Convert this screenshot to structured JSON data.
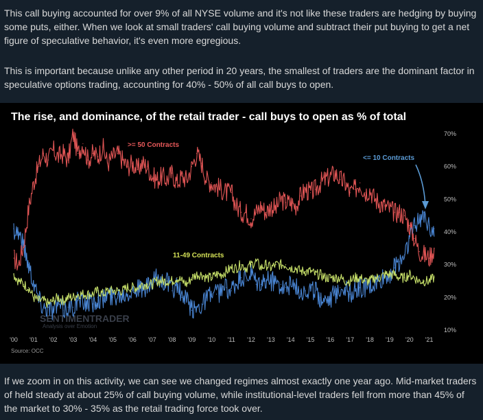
{
  "paragraphs": {
    "intro": "This call buying accounted for over 9% of all NYSE volume and it's not like these traders are hedging by buying some puts, either. When we look at small traders' call buying volume and subtract their put buying to get a net figure of speculative behavior, it's even more egregious.",
    "important": "This is important because unlike any other period in 20 years, the smallest of traders are the dominant factor in speculative options trading, accounting for 40% - 50% of all call buys to open.",
    "zoom": "If we zoom in on this activity, we can see we changed regimes almost exactly one year ago. Mid-market traders of held steady at about 25% of call buying volume, while institutional-level traders fell from more than 45% of the market to 30% - 35% as the retail trading force took over."
  },
  "chart_data": {
    "type": "line",
    "title": "The rise, and dominance, of the retail trader - call buys to open as % of total",
    "x_tick_labels": [
      "'00",
      "'01",
      "'02",
      "'03",
      "'04",
      "'05",
      "'06",
      "'07",
      "'08",
      "'09",
      "'10",
      "'11",
      "'12",
      "'13",
      "'14",
      "'15",
      "'16",
      "'17",
      "'18",
      "'19",
      "'20",
      "'21"
    ],
    "y_tick_labels": [
      "70%",
      "60%",
      "50%",
      "40%",
      "30%",
      "20%",
      "10%"
    ],
    "xlim": [
      2000.0,
      2021.5
    ],
    "ylim": [
      10,
      70
    ],
    "y_axis_side": "right",
    "source": "Source: OCC",
    "watermark": {
      "brand": "SENTIMENTRADER",
      "tagline": "Analysis over Emotion"
    },
    "annotations": [
      {
        "text": ">= 50 Contracts",
        "color": "#e8595a"
      },
      {
        "text": "<= 10 Contracts",
        "color": "#5b9bd5"
      },
      {
        "text": "11-49 Contracts",
        "color": "#d4e157"
      }
    ],
    "series": [
      {
        "name": ">= 50 Contracts",
        "color": "#e05555",
        "x": [
          2000.0,
          2000.25,
          2000.5,
          2000.75,
          2001.0,
          2001.25,
          2001.5,
          2001.75,
          2002.0,
          2002.25,
          2002.5,
          2002.75,
          2003.0,
          2003.25,
          2003.5,
          2003.75,
          2004.0,
          2004.25,
          2004.5,
          2004.75,
          2005.0,
          2005.25,
          2005.5,
          2005.75,
          2006.0,
          2006.25,
          2006.5,
          2006.75,
          2007.0,
          2007.25,
          2007.5,
          2007.75,
          2008.0,
          2008.25,
          2008.5,
          2008.75,
          2009.0,
          2009.25,
          2009.5,
          2009.75,
          2010.0,
          2010.25,
          2010.5,
          2010.75,
          2011.0,
          2011.25,
          2011.5,
          2011.75,
          2012.0,
          2012.25,
          2012.5,
          2012.75,
          2013.0,
          2013.25,
          2013.5,
          2013.75,
          2014.0,
          2014.25,
          2014.5,
          2014.75,
          2015.0,
          2015.25,
          2015.5,
          2015.75,
          2016.0,
          2016.25,
          2016.5,
          2016.75,
          2017.0,
          2017.25,
          2017.5,
          2017.75,
          2018.0,
          2018.25,
          2018.5,
          2018.75,
          2019.0,
          2019.25,
          2019.5,
          2019.75,
          2020.0,
          2020.25,
          2020.5,
          2020.75,
          2021.0,
          2021.25
        ],
        "values": [
          32,
          30,
          36,
          47,
          55,
          60,
          64,
          62,
          65,
          63,
          64,
          62,
          70,
          64,
          67,
          62,
          64,
          63,
          66,
          61,
          63,
          64,
          62,
          60,
          61,
          59,
          61,
          60,
          57,
          56,
          57,
          56,
          58,
          55,
          57,
          56,
          60,
          64,
          61,
          56,
          55,
          54,
          53,
          52,
          52,
          48,
          46,
          46,
          44,
          46,
          48,
          46,
          48,
          47,
          50,
          49,
          49,
          48,
          51,
          53,
          52,
          53,
          55,
          56,
          57,
          58,
          56,
          55,
          52,
          53,
          55,
          52,
          53,
          50,
          49,
          48,
          47,
          46,
          46,
          45,
          42,
          38,
          34,
          33,
          32,
          35
        ]
      },
      {
        "name": "<= 10 Contracts",
        "color": "#4a86d4",
        "x": [
          2000.0,
          2000.25,
          2000.5,
          2000.75,
          2001.0,
          2001.25,
          2001.5,
          2001.75,
          2002.0,
          2002.25,
          2002.5,
          2002.75,
          2003.0,
          2003.25,
          2003.5,
          2003.75,
          2004.0,
          2004.25,
          2004.5,
          2004.75,
          2005.0,
          2005.25,
          2005.5,
          2005.75,
          2006.0,
          2006.25,
          2006.5,
          2006.75,
          2007.0,
          2007.25,
          2007.5,
          2007.75,
          2008.0,
          2008.25,
          2008.5,
          2008.75,
          2009.0,
          2009.25,
          2009.5,
          2009.75,
          2010.0,
          2010.25,
          2010.5,
          2010.75,
          2011.0,
          2011.25,
          2011.5,
          2011.75,
          2012.0,
          2012.25,
          2012.5,
          2012.75,
          2013.0,
          2013.25,
          2013.5,
          2013.75,
          2014.0,
          2014.25,
          2014.5,
          2014.75,
          2015.0,
          2015.25,
          2015.5,
          2015.75,
          2016.0,
          2016.25,
          2016.5,
          2016.75,
          2017.0,
          2017.25,
          2017.5,
          2017.75,
          2018.0,
          2018.25,
          2018.5,
          2018.75,
          2019.0,
          2019.25,
          2019.5,
          2019.75,
          2020.0,
          2020.25,
          2020.5,
          2020.75,
          2021.0,
          2021.25
        ],
        "values": [
          41,
          40,
          36,
          30,
          25,
          20,
          17,
          17,
          16,
          18,
          16,
          17,
          17,
          19,
          18,
          19,
          18,
          20,
          19,
          21,
          20,
          21,
          21,
          22,
          22,
          23,
          22,
          23,
          24,
          26,
          25,
          25,
          22,
          24,
          20,
          19,
          16,
          17,
          18,
          20,
          21,
          21,
          22,
          23,
          22,
          24,
          26,
          25,
          27,
          24,
          24,
          25,
          25,
          25,
          24,
          23,
          24,
          23,
          22,
          22,
          22,
          22,
          20,
          20,
          20,
          21,
          23,
          23,
          21,
          22,
          23,
          23,
          23,
          24,
          25,
          26,
          27,
          29,
          31,
          33,
          38,
          42,
          43,
          46,
          42,
          41
        ]
      },
      {
        "name": "11-49 Contracts",
        "color": "#c7e06a",
        "x": [
          2000.0,
          2000.25,
          2000.5,
          2000.75,
          2001.0,
          2001.25,
          2001.5,
          2001.75,
          2002.0,
          2002.25,
          2002.5,
          2002.75,
          2003.0,
          2003.25,
          2003.5,
          2003.75,
          2004.0,
          2004.25,
          2004.5,
          2004.75,
          2005.0,
          2005.25,
          2005.5,
          2005.75,
          2006.0,
          2006.25,
          2006.5,
          2006.75,
          2007.0,
          2007.25,
          2007.5,
          2007.75,
          2008.0,
          2008.25,
          2008.5,
          2008.75,
          2009.0,
          2009.25,
          2009.5,
          2009.75,
          2010.0,
          2010.25,
          2010.5,
          2010.75,
          2011.0,
          2011.25,
          2011.5,
          2011.75,
          2012.0,
          2012.25,
          2012.5,
          2012.75,
          2013.0,
          2013.25,
          2013.5,
          2013.75,
          2014.0,
          2014.25,
          2014.5,
          2014.75,
          2015.0,
          2015.25,
          2015.5,
          2015.75,
          2016.0,
          2016.25,
          2016.5,
          2016.75,
          2017.0,
          2017.25,
          2017.5,
          2017.75,
          2018.0,
          2018.25,
          2018.5,
          2018.75,
          2019.0,
          2019.25,
          2019.5,
          2019.75,
          2020.0,
          2020.25,
          2020.5,
          2020.75,
          2021.0,
          2021.25
        ],
        "values": [
          27,
          25,
          24,
          23,
          20,
          19,
          19,
          18,
          19,
          20,
          19,
          20,
          20,
          21,
          21,
          21,
          21,
          22,
          21,
          22,
          22,
          22,
          22,
          23,
          23,
          23,
          24,
          24,
          24,
          25,
          25,
          25,
          25,
          26,
          25,
          24,
          26,
          27,
          27,
          26,
          26,
          27,
          27,
          28,
          29,
          29,
          30,
          29,
          30,
          31,
          29,
          30,
          29,
          30,
          30,
          30,
          29,
          29,
          28,
          28,
          28,
          27,
          27,
          26,
          26,
          26,
          26,
          25,
          25,
          26,
          26,
          25,
          25,
          26,
          26,
          27,
          27,
          27,
          26,
          26,
          27,
          26,
          25,
          25,
          25,
          26
        ]
      }
    ]
  }
}
